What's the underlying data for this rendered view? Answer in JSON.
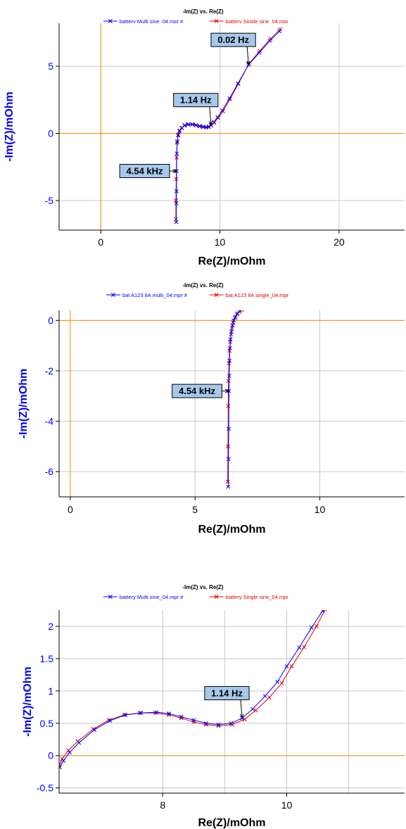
{
  "colors": {
    "series1": "#0000ff",
    "series2": "#e00000",
    "zero_lines": "#ff8c00",
    "grid": "#c8c8c8",
    "annotation_fill": "#a6c8ea"
  },
  "chart_data": [
    {
      "type": "scatter",
      "title": "-Im(Z) vs. Re(Z)",
      "xlabel": "Re(Z)/mOhm",
      "ylabel": "-Im(Z)/mOhm",
      "xlim": [
        -3.5,
        25.5
      ],
      "ylim": [
        -7.2,
        8.2
      ],
      "xticks": [
        "0",
        "10",
        "20"
      ],
      "xtick_values": [
        0,
        10,
        20
      ],
      "xgrid": [
        0,
        10,
        20
      ],
      "yticks": [
        "5",
        "0",
        "-5"
      ],
      "ytick_values": [
        5,
        0,
        -5
      ],
      "ygrid": [
        5,
        0,
        -5
      ],
      "grid": true,
      "legend_position": "top",
      "series": [
        {
          "name": "battery Multi sine_04.mpr #",
          "x": [
            6.33,
            6.34,
            6.35,
            6.36,
            6.38,
            6.42,
            6.5,
            6.62,
            6.8,
            7.05,
            7.35,
            7.7,
            8.0,
            8.3,
            8.6,
            8.85,
            9.05,
            9.25,
            9.5,
            9.8,
            10.2,
            10.8,
            11.5,
            12.4,
            13.3,
            14.2,
            15.0
          ],
          "y": [
            -6.6,
            -5.2,
            -4.3,
            -2.8,
            -1.5,
            -0.6,
            -0.1,
            0.2,
            0.42,
            0.6,
            0.68,
            0.68,
            0.62,
            0.55,
            0.5,
            0.47,
            0.5,
            0.62,
            0.85,
            1.2,
            1.7,
            2.6,
            3.7,
            5.1,
            6.0,
            6.9,
            7.6
          ]
        },
        {
          "name": "battery Single sine_04.mpr",
          "x": [
            6.3,
            6.31,
            6.33,
            6.36,
            6.4,
            6.48,
            6.6,
            6.78,
            7.02,
            7.32,
            7.68,
            7.98,
            8.3,
            8.6,
            8.85,
            9.05,
            9.27,
            9.52,
            9.85,
            10.25,
            10.85,
            11.55,
            12.45,
            13.35,
            14.25,
            15.05
          ],
          "y": [
            -6.4,
            -5.0,
            -3.4,
            -1.8,
            -0.7,
            -0.15,
            0.15,
            0.4,
            0.58,
            0.66,
            0.66,
            0.6,
            0.52,
            0.47,
            0.44,
            0.47,
            0.58,
            0.8,
            1.15,
            1.65,
            2.55,
            3.7,
            5.2,
            6.15,
            7.05,
            7.75
          ]
        }
      ],
      "annotations": [
        {
          "text": "0.02 Hz",
          "x": 12.4,
          "y": 5.1
        },
        {
          "text": "1.14 Hz",
          "x": 9.25,
          "y": 0.62
        },
        {
          "text": "4.54 kHz",
          "x": 6.36,
          "y": -2.8
        }
      ]
    },
    {
      "type": "scatter",
      "title": "-Im(Z) vs. Re(Z)",
      "xlabel": "Re(Z)/mOhm",
      "ylabel": "-Im(Z)/mOhm",
      "xlim": [
        -0.45,
        13.4
      ],
      "ylim": [
        -7.0,
        0.4
      ],
      "xticks": [
        "0",
        "5",
        "10"
      ],
      "xtick_values": [
        0,
        5,
        10
      ],
      "xgrid": [
        0,
        5,
        10
      ],
      "yticks": [
        "0",
        "-2",
        "-4",
        "-6"
      ],
      "ytick_values": [
        0,
        -2,
        -4,
        -6
      ],
      "ygrid": [
        0,
        -2,
        -4,
        -6
      ],
      "grid": true,
      "legend_position": "top",
      "series": [
        {
          "name": "bat A123 8A multi_04.mpr #",
          "x": [
            6.33,
            6.34,
            6.35,
            6.36,
            6.37,
            6.38,
            6.4,
            6.42,
            6.46,
            6.5,
            6.55,
            6.62,
            6.7,
            6.8
          ],
          "y": [
            -6.6,
            -5.5,
            -4.3,
            -2.8,
            -2.2,
            -1.6,
            -1.1,
            -0.75,
            -0.45,
            -0.2,
            0.0,
            0.15,
            0.28,
            0.4
          ]
        },
        {
          "name": "bat A123 8A single_04.mpr",
          "x": [
            6.31,
            6.32,
            6.33,
            6.34,
            6.36,
            6.38,
            6.41,
            6.44,
            6.48,
            6.53,
            6.6,
            6.68,
            6.78,
            6.88
          ],
          "y": [
            -6.4,
            -5.0,
            -3.4,
            -2.4,
            -1.7,
            -1.2,
            -0.85,
            -0.55,
            -0.3,
            -0.08,
            0.1,
            0.24,
            0.34,
            0.42
          ]
        }
      ],
      "annotations": [
        {
          "text": "4.54 kHz",
          "x": 6.36,
          "y": -2.8
        }
      ]
    },
    {
      "type": "scatter",
      "title": "-Im(Z) vs. Re(Z)",
      "xlabel": "Re(Z)/mOhm",
      "ylabel": "-Im(Z)/mOhm",
      "xlim": [
        6.33,
        11.9
      ],
      "ylim": [
        -0.58,
        2.25
      ],
      "xticks": [
        "8",
        "10"
      ],
      "xtick_values": [
        8,
        10
      ],
      "xgrid": [
        8,
        9,
        10,
        11
      ],
      "yticks": [
        "2",
        "1.5",
        "1",
        "0.5",
        "0",
        "-0.5"
      ],
      "ytick_values": [
        2,
        1.5,
        1,
        0.5,
        0,
        -0.5
      ],
      "ygrid": [
        2,
        1.5,
        1,
        0.5,
        0,
        -0.5
      ],
      "grid": true,
      "legend_position": "top",
      "series": [
        {
          "name": "battery Multi sine_04.mpr #",
          "x": [
            6.34,
            6.4,
            6.5,
            6.65,
            6.9,
            7.15,
            7.4,
            7.65,
            7.9,
            8.1,
            8.3,
            8.5,
            8.7,
            8.9,
            9.1,
            9.28,
            9.45,
            9.65,
            9.85,
            10.0,
            10.2,
            10.4,
            10.58
          ],
          "y": [
            -0.18,
            -0.08,
            0.05,
            0.2,
            0.4,
            0.54,
            0.63,
            0.66,
            0.67,
            0.65,
            0.6,
            0.55,
            0.5,
            0.48,
            0.5,
            0.58,
            0.72,
            0.92,
            1.14,
            1.38,
            1.67,
            1.98,
            2.24
          ]
        },
        {
          "name": "battery Single sine_04.mpr",
          "x": [
            6.33,
            6.38,
            6.48,
            6.63,
            6.88,
            7.13,
            7.38,
            7.63,
            7.88,
            8.1,
            8.3,
            8.5,
            8.7,
            8.9,
            9.12,
            9.32,
            9.5,
            9.72,
            9.92,
            10.08,
            10.28,
            10.48,
            10.62
          ],
          "y": [
            -0.15,
            -0.05,
            0.08,
            0.22,
            0.41,
            0.55,
            0.63,
            0.66,
            0.66,
            0.63,
            0.58,
            0.52,
            0.48,
            0.46,
            0.48,
            0.56,
            0.7,
            0.9,
            1.12,
            1.38,
            1.68,
            2.0,
            2.26
          ]
        }
      ],
      "annotations": [
        {
          "text": "1.14 Hz",
          "x": 9.28,
          "y": 0.58
        }
      ]
    }
  ]
}
